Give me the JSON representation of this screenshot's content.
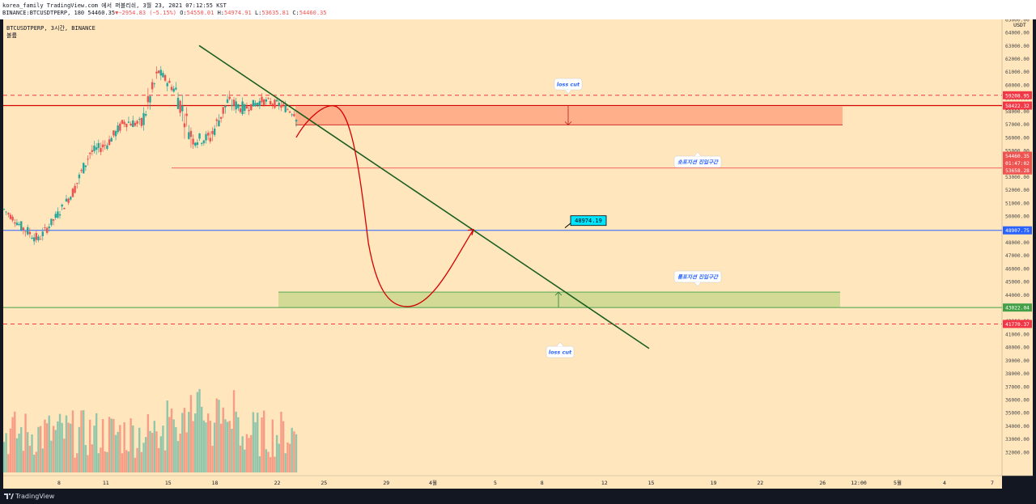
{
  "header": {
    "line1": "korea_family TradingView.com 에서 퍼블리쉬, 3월 23, 2021 07:12:55 KST",
    "symbol": "BINANCE:BTCUSDTPERP, 180",
    "price": "54460.35",
    "change": "−2954.83 (−5.15%)",
    "o_label": "O:",
    "o_value": "54550.01",
    "h_label": "H:",
    "h_value": "54974.91",
    "l_label": "L:",
    "l_value": "53635.81",
    "c_label": "C:",
    "c_value": "54460.35"
  },
  "legend": {
    "title": "BTCUSDTPERP, 3시간, BINANCE",
    "subtitle": "볼륨"
  },
  "footer": {
    "brand": "TradingView"
  },
  "chart_data": {
    "type": "candlestick",
    "title": "BTCUSDTPERP, 3시간, BINANCE",
    "currency_label": "USDT",
    "ylim": [
      31000,
      65500
    ],
    "y_ticks": [
      32000,
      33000,
      34000,
      35000,
      36000,
      37000,
      38000,
      39000,
      40000,
      41000,
      42000,
      43000,
      44000,
      45000,
      46000,
      47000,
      48000,
      49000,
      50000,
      51000,
      52000,
      53000,
      54000,
      55000,
      56000,
      57000,
      58000,
      59000,
      60000,
      61000,
      62000,
      63000,
      64000,
      65000
    ],
    "x_ticks": [
      "8",
      "11",
      "15",
      "18",
      "22",
      "25",
      "29",
      "4월",
      "5",
      "8",
      "12",
      "15",
      "19",
      "22",
      "26",
      "12:00",
      "5월",
      "4",
      "7"
    ],
    "price_labels": [
      {
        "label": "59208.95",
        "value": 59208.95,
        "color": "#f23645"
      },
      {
        "label": "58422.32",
        "value": 58422.32,
        "color": "#f23645"
      },
      {
        "label": "54460.35",
        "value": 54460.35,
        "color": "#ef5350"
      },
      {
        "label": "01:47:02",
        "value": 54000,
        "color": "#ef5350"
      },
      {
        "label": "53658.28",
        "value": 53658.28,
        "color": "#ef5350"
      },
      {
        "label": "48907.75",
        "value": 48907.75,
        "color": "#2962ff"
      },
      {
        "label": "43022.04",
        "value": 43022.04,
        "color": "#43a047"
      },
      {
        "label": "41770.37",
        "value": 41770.37,
        "color": "#f23645"
      }
    ],
    "candle_anchors": [
      {
        "day": "Mar 5",
        "high": 51000,
        "low": 49000,
        "open": 50500,
        "close": 49700
      },
      {
        "day": "Mar 6",
        "high": 49500,
        "low": 46500,
        "open": 49200,
        "close": 47800
      },
      {
        "day": "Mar 7",
        "high": 50000,
        "low": 47500,
        "open": 48200,
        "close": 49600
      },
      {
        "day": "Mar 8",
        "high": 52000,
        "low": 49500,
        "open": 49900,
        "close": 51500
      },
      {
        "day": "Mar 9",
        "high": 55000,
        "low": 51500,
        "open": 51800,
        "close": 54500
      },
      {
        "day": "Mar 10",
        "high": 57000,
        "low": 54000,
        "open": 54800,
        "close": 56000
      },
      {
        "day": "Mar 11",
        "high": 58000,
        "low": 55000,
        "open": 55500,
        "close": 57200
      },
      {
        "day": "Mar 12",
        "high": 58500,
        "low": 55500,
        "open": 57200,
        "close": 56800
      },
      {
        "day": "Mar 13",
        "high": 62000,
        "low": 56500,
        "open": 57000,
        "close": 61000
      },
      {
        "day": "Mar 14",
        "high": 61800,
        "low": 59000,
        "open": 61000,
        "close": 59500
      },
      {
        "day": "Mar 15",
        "high": 60800,
        "low": 54500,
        "open": 59500,
        "close": 55800
      },
      {
        "day": "Mar 16",
        "high": 57000,
        "low": 53600,
        "open": 55800,
        "close": 56000
      },
      {
        "day": "Mar 17",
        "high": 59000,
        "low": 54500,
        "open": 56000,
        "close": 58700
      },
      {
        "day": "Mar 18",
        "high": 60500,
        "low": 57000,
        "open": 58700,
        "close": 58200
      },
      {
        "day": "Mar 19",
        "high": 60000,
        "low": 57500,
        "open": 58200,
        "close": 58800
      },
      {
        "day": "Mar 20",
        "high": 59800,
        "low": 57500,
        "open": 58800,
        "close": 58500
      },
      {
        "day": "Mar 21",
        "high": 59000,
        "low": 56500,
        "open": 58500,
        "close": 57800
      },
      {
        "day": "Mar 22",
        "high": 58500,
        "low": 53600,
        "open": 57800,
        "close": 54460
      }
    ],
    "volume": "bars in lower pane, green/red by candle direction",
    "drawings": [
      {
        "type": "trend_line",
        "color": "#1b5e20",
        "from": {
          "date": "Mar 17",
          "price": 63000
        },
        "to": {
          "date": "Apr 15",
          "price": 39900
        }
      },
      {
        "type": "horizontal_line",
        "style": "dashed",
        "color": "#f23645",
        "price": 59208.95
      },
      {
        "type": "horizontal_line",
        "style": "solid",
        "color": "#f23645",
        "price": 58422.32
      },
      {
        "type": "horizontal_line",
        "style": "solid",
        "color": "#2962ff",
        "price": 48907.75
      },
      {
        "type": "horizontal_line",
        "style": "solid",
        "color": "#43a047",
        "price": 43022.04
      },
      {
        "type": "horizontal_line",
        "style": "dashed",
        "color": "#f23645",
        "price": 41770.37
      },
      {
        "type": "horizontal_line",
        "style": "solid",
        "color": "#ef5350",
        "price": 53658.28
      },
      {
        "type": "zone",
        "color": "#ff8a65",
        "from_price": 56950,
        "to_price": 58350,
        "label": "숏포지션 진입구간"
      },
      {
        "type": "zone",
        "color": "#9ccc65",
        "from_price": 43050,
        "to_price": 44200,
        "label": "롱포지션 진입구간"
      }
    ],
    "annotations": [
      {
        "text": "loss cut",
        "price": 61000,
        "box": "#ffffff",
        "color": "#2962ff"
      },
      {
        "text": "숏포지션 진입구간",
        "price": 55980,
        "box": "#ffffff",
        "color": "#2962ff"
      },
      {
        "text": "롱포지션 진입구간",
        "price": 46020,
        "box": "#ffffff",
        "color": "#2962ff"
      },
      {
        "text": "loss cut",
        "price": 40500,
        "box": "#ffffff",
        "color": "#2962ff"
      },
      {
        "text": "48974.19",
        "price": 49650,
        "box": "#00e5ff",
        "color": "#000000"
      }
    ],
    "projected_path": "red curve: up to ~58400, drop to ~43100, recover to ~48974"
  }
}
